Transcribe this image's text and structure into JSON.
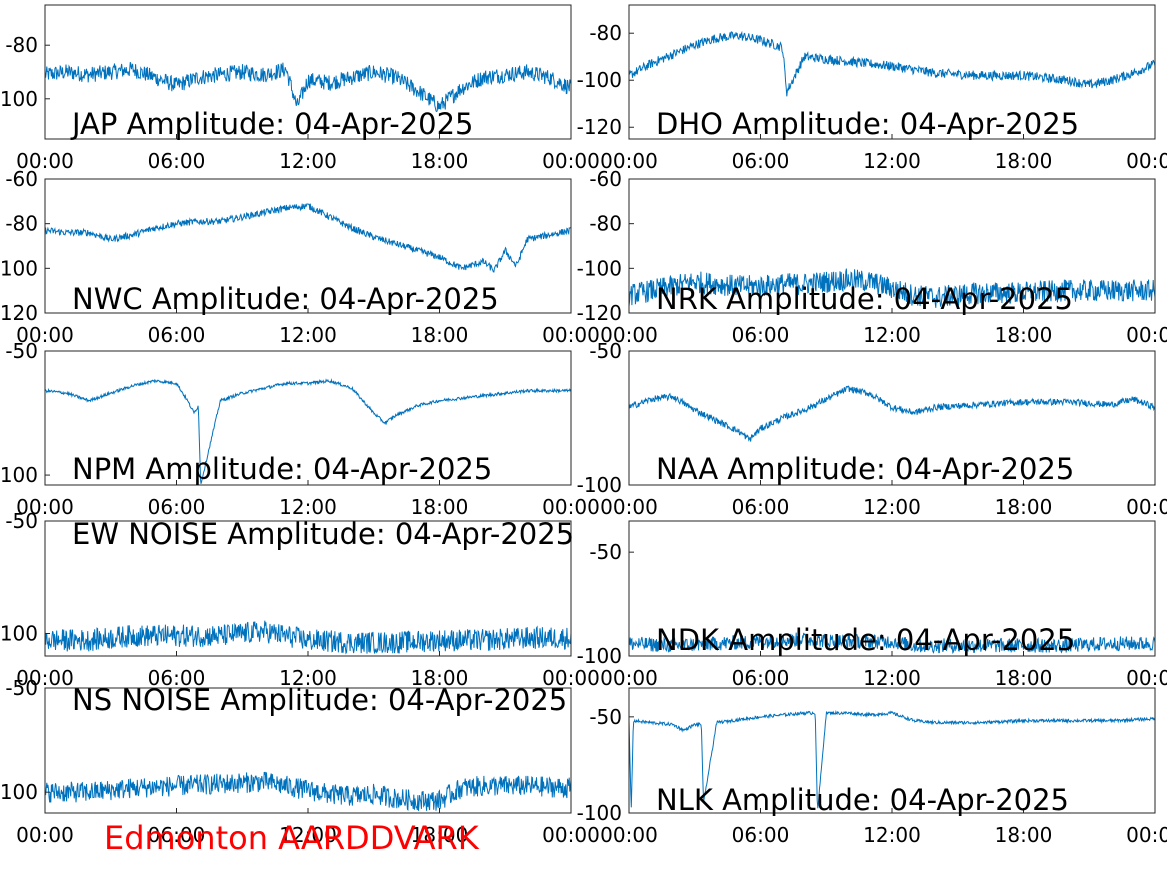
{
  "footer": {
    "label": "Edmonton AARDDVARK",
    "color": "#ff0000"
  },
  "style": {
    "trace_color": "#0072bd",
    "axis_color": "#262626",
    "label_color": "#000000"
  },
  "chart_data": [
    {
      "type": "line",
      "title": "JAP Amplitude: 04-Apr-2025",
      "x_ticks": [
        "00:00",
        "06:00",
        "12:00",
        "18:00",
        "00:00"
      ],
      "y_tick_labels": [
        "-80",
        "100"
      ],
      "y_tick_values": [
        -80,
        -100
      ],
      "ylim": [
        -115,
        -65
      ],
      "grid": false,
      "series": [
        {
          "x": [
            0,
            1,
            2,
            3,
            4,
            5,
            6,
            7,
            8,
            9,
            10,
            11,
            11.5,
            12,
            13,
            14,
            15,
            16,
            17,
            18,
            19,
            20,
            21,
            22,
            23,
            24
          ],
          "y": [
            -91,
            -90,
            -91,
            -90,
            -89,
            -92,
            -95,
            -92,
            -91,
            -90,
            -91,
            -89,
            -103,
            -93,
            -94,
            -92,
            -90,
            -92,
            -97,
            -103,
            -96,
            -92,
            -91,
            -90,
            -92,
            -96
          ],
          "spread": 3
        }
      ]
    },
    {
      "type": "line",
      "title": "DHO Amplitude: 04-Apr-2025",
      "x_ticks": [
        "00:00",
        "06:00",
        "12:00",
        "18:00",
        "00:00"
      ],
      "y_tick_labels": [
        "-80",
        "-100",
        "-120"
      ],
      "y_tick_values": [
        -80,
        -100,
        -120
      ],
      "ylim": [
        -125,
        -68
      ],
      "grid": false,
      "series": [
        {
          "x": [
            0,
            1,
            2,
            3,
            4,
            5,
            6,
            7,
            7.2,
            8,
            9,
            10,
            12,
            14,
            16,
            18,
            20,
            21,
            22,
            23,
            24
          ],
          "y": [
            -98,
            -93,
            -89,
            -85,
            -82,
            -81,
            -83,
            -86,
            -105,
            -90,
            -91,
            -92,
            -94,
            -97,
            -98,
            -98,
            -100,
            -102,
            -100,
            -97,
            -93
          ],
          "spread": 2
        }
      ]
    },
    {
      "type": "line",
      "title": "NWC Amplitude: 04-Apr-2025",
      "x_ticks": [
        "00:00",
        "06:00",
        "12:00",
        "18:00",
        "00:00"
      ],
      "y_tick_labels": [
        "-60",
        "-80",
        "100",
        "120"
      ],
      "y_tick_values": [
        -60,
        -80,
        -100,
        -120
      ],
      "ylim": [
        -120,
        -60
      ],
      "grid": false,
      "series": [
        {
          "x": [
            0,
            1,
            2,
            3,
            4,
            5,
            6,
            7,
            8,
            9,
            10,
            11,
            12,
            13,
            14,
            15,
            16,
            17,
            18,
            19,
            20,
            20.5,
            21,
            21.5,
            22,
            23,
            24
          ],
          "y": [
            -83,
            -84,
            -84,
            -87,
            -85,
            -82,
            -80,
            -79,
            -79,
            -77,
            -75,
            -73,
            -72,
            -77,
            -82,
            -86,
            -89,
            -92,
            -95,
            -100,
            -97,
            -101,
            -92,
            -99,
            -87,
            -85,
            -83
          ],
          "spread": 1.5
        }
      ]
    },
    {
      "type": "line",
      "title": "NRK Amplitude: 04-Apr-2025",
      "x_ticks": [
        "00:00",
        "06:00",
        "12:00",
        "18:00",
        "00:00"
      ],
      "y_tick_labels": [
        "-60",
        "-80",
        "-100",
        "-120"
      ],
      "y_tick_values": [
        -60,
        -80,
        -100,
        -120
      ],
      "ylim": [
        -120,
        -60
      ],
      "grid": false,
      "series": [
        {
          "x": [
            0,
            1,
            2,
            3,
            4,
            5,
            6,
            7,
            8,
            9,
            10,
            11,
            12,
            13,
            14,
            16,
            18,
            20,
            22,
            24
          ],
          "y": [
            -112,
            -110,
            -108,
            -106,
            -107,
            -108,
            -108,
            -107,
            -107,
            -106,
            -105,
            -106,
            -109,
            -112,
            -113,
            -111,
            -111,
            -110,
            -110,
            -110
          ],
          "spread": 5
        }
      ]
    },
    {
      "type": "line",
      "title": "NPM Amplitude: 04-Apr-2025",
      "x_ticks": [
        "00:00",
        "06:00",
        "12:00",
        "18:00",
        "00:00"
      ],
      "y_tick_labels": [
        "-50",
        "100"
      ],
      "y_tick_values": [
        -50,
        -100
      ],
      "ylim": [
        -104,
        -50
      ],
      "grid": false,
      "series": [
        {
          "x": [
            0,
            1,
            2,
            3,
            4,
            5,
            6,
            6.5,
            6.8,
            7,
            7.1,
            8,
            9,
            10,
            11,
            12,
            13,
            14,
            14.5,
            15,
            15.5,
            16,
            17,
            18,
            19,
            20,
            21,
            22,
            23,
            24
          ],
          "y": [
            -66,
            -67,
            -70,
            -67,
            -64,
            -62,
            -63,
            -70,
            -75,
            -72,
            -104,
            -70,
            -67,
            -65,
            -63,
            -63,
            -62,
            -65,
            -70,
            -75,
            -79,
            -76,
            -72,
            -70,
            -69,
            -68,
            -67,
            -66,
            -66,
            -66
          ],
          "spread": 0.6
        }
      ]
    },
    {
      "type": "line",
      "title": "NAA Amplitude: 04-Apr-2025",
      "x_ticks": [
        "00:00",
        "06:00",
        "12:00",
        "18:00",
        "00:00"
      ],
      "y_tick_labels": [
        "-50",
        "-100"
      ],
      "y_tick_values": [
        -50,
        -100
      ],
      "ylim": [
        -100,
        -50
      ],
      "grid": false,
      "series": [
        {
          "x": [
            0,
            1,
            2,
            3,
            4,
            5,
            5.5,
            6,
            7,
            8,
            9,
            10,
            11,
            12,
            13,
            14,
            16,
            18,
            20,
            22,
            23,
            24
          ],
          "y": [
            -71,
            -68,
            -67,
            -72,
            -76,
            -80,
            -83,
            -79,
            -75,
            -72,
            -68,
            -64,
            -66,
            -71,
            -73,
            -71,
            -70,
            -69,
            -69,
            -70,
            -68,
            -71
          ],
          "spread": 1.2
        }
      ]
    },
    {
      "type": "line",
      "title": "EW NOISE Amplitude: 04-Apr-2025",
      "x_ticks": [
        "00:00",
        "06:00",
        "12:00",
        "18:00",
        "00:00"
      ],
      "y_tick_labels": [
        "-50",
        "100"
      ],
      "y_tick_values": [
        -50,
        -100
      ],
      "ylim": [
        -110,
        -50
      ],
      "grid": false,
      "series": [
        {
          "x": [
            0,
            2,
            4,
            6,
            8,
            10,
            11,
            12,
            14,
            16,
            18,
            20,
            22,
            24
          ],
          "y": [
            -103,
            -103,
            -101,
            -101,
            -101,
            -99,
            -101,
            -103,
            -104,
            -104,
            -103,
            -103,
            -102,
            -102
          ],
          "spread": 5
        }
      ]
    },
    {
      "type": "line",
      "title": "NDK Amplitude: 04-Apr-2025",
      "x_ticks": [
        "00:00",
        "06:00",
        "12:00",
        "18:00",
        "00:00"
      ],
      "y_tick_labels": [
        "-50",
        "-100"
      ],
      "y_tick_values": [
        -50,
        -100
      ],
      "ylim": [
        -100,
        -35
      ],
      "grid": false,
      "series": [
        {
          "x": [
            0,
            2,
            4,
            6,
            8,
            10,
            12,
            13,
            14,
            16,
            18,
            20,
            22,
            24
          ],
          "y": [
            -94,
            -95,
            -94,
            -93,
            -92,
            -93,
            -93,
            -95,
            -95,
            -95,
            -95,
            -95,
            -94,
            -94
          ],
          "spread": 3.5
        }
      ]
    },
    {
      "type": "line",
      "title": "NS NOISE Amplitude: 04-Apr-2025",
      "x_ticks": [
        "00:00",
        "06:00",
        "12:00",
        "18:00",
        "00:00"
      ],
      "y_tick_labels": [
        "-50",
        "100"
      ],
      "y_tick_values": [
        -50,
        -100
      ],
      "ylim": [
        -110,
        -50
      ],
      "grid": false,
      "series": [
        {
          "x": [
            0,
            0.8,
            1.5,
            2,
            4,
            6,
            8,
            10,
            11,
            12,
            13,
            14,
            15,
            16,
            17,
            18,
            18.5,
            19,
            20,
            22,
            24
          ],
          "y": [
            -100,
            -100,
            -100,
            -100,
            -98,
            -97,
            -96,
            -95,
            -97,
            -99,
            -101,
            -102,
            -101,
            -103,
            -104,
            -104,
            -101,
            -98,
            -97,
            -97,
            -98
          ],
          "spread": 5
        }
      ]
    },
    {
      "type": "line",
      "title": "NLK Amplitude: 04-Apr-2025",
      "x_ticks": [
        "00:00",
        "06:00",
        "12:00",
        "18:00",
        "00:00"
      ],
      "y_tick_labels": [
        "-50",
        "-100"
      ],
      "y_tick_values": [
        -50,
        -100
      ],
      "ylim": [
        -100,
        -35
      ],
      "grid": false,
      "series": [
        {
          "x": [
            0,
            0.1,
            0.2,
            1,
            2,
            2.5,
            3,
            3.3,
            3.4,
            4,
            6,
            8,
            8.5,
            8.6,
            9,
            10,
            11,
            12,
            13,
            14,
            16,
            18,
            20,
            22,
            24
          ],
          "y": [
            -52,
            -100,
            -52,
            -53,
            -54,
            -57,
            -54,
            -54,
            -95,
            -53,
            -50,
            -48,
            -48,
            -100,
            -48,
            -48,
            -49,
            -48,
            -52,
            -53,
            -53,
            -52,
            -52,
            -52,
            -51
          ],
          "spread": 0.8
        }
      ]
    }
  ]
}
